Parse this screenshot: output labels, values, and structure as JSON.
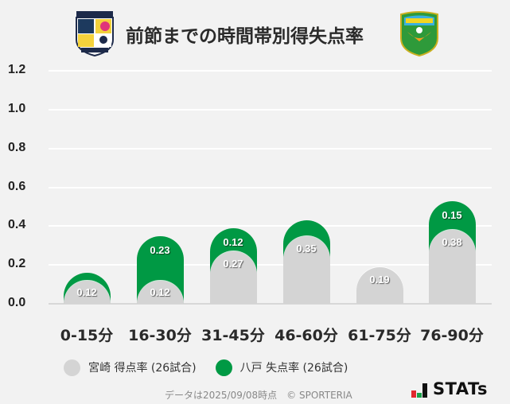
{
  "header": {
    "title": "前節までの時間帯別得失点率",
    "home_logo": "miyazaki-crest",
    "away_logo": "hachinohe-crest"
  },
  "chart_data": {
    "type": "bar",
    "stacked": true,
    "title": "前節までの時間帯別得失点率",
    "xlabel": "",
    "ylabel": "",
    "ylim": [
      0,
      1.2
    ],
    "yticks": [
      "1.2",
      "1.0",
      "0.8",
      "0.6",
      "0.4",
      "0.2",
      "0.0"
    ],
    "grid": true,
    "legend_position": "bottom",
    "categories": [
      "0-15分",
      "16-30分",
      "31-45分",
      "46-60分",
      "61-75分",
      "76-90分"
    ],
    "series": [
      {
        "name": "宮崎 得点率 (26試合)",
        "color": "#d4d4d4",
        "values": [
          0.12,
          0.12,
          0.27,
          0.35,
          0.19,
          0.38
        ],
        "labels": [
          "0.12",
          "0.12",
          "0.27",
          "0.35",
          "0.19",
          "0.38"
        ]
      },
      {
        "name": "八戸 失点率 (26試合)",
        "color": "#009944",
        "values": [
          0.04,
          0.23,
          0.12,
          0.08,
          0.0,
          0.15
        ],
        "labels": [
          "",
          "0.23",
          "0.12",
          "",
          "",
          "0.15"
        ]
      }
    ]
  },
  "legend": {
    "items": [
      {
        "label": "宮崎 得点率 (26試合)",
        "color": "#d4d4d4"
      },
      {
        "label": "八戸 失点率 (26試合)",
        "color": "#009944"
      }
    ]
  },
  "footer": {
    "note": "データは2025/09/08時点　© SPORTERIA",
    "brand": "STATs"
  }
}
